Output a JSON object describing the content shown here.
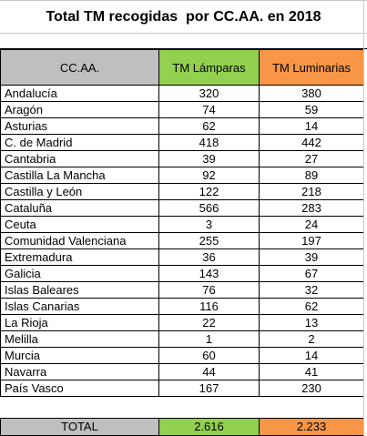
{
  "title": "Total TM recogidas  por CC.AA. en 2018",
  "headers": {
    "region": "CC.AA.",
    "lamparas": "TM Lámparas",
    "luminarias": "TM Luminarias"
  },
  "colors": {
    "header_gray": "#bfbfbf",
    "lamparas_green": "#92d050",
    "luminarias_orange": "#f79646"
  },
  "rows": [
    {
      "region": "Andalucía",
      "lamparas": "320",
      "luminarias": "380"
    },
    {
      "region": "Aragón",
      "lamparas": "74",
      "luminarias": "59"
    },
    {
      "region": "Asturias",
      "lamparas": "62",
      "luminarias": "14"
    },
    {
      "region": "C. de Madrid",
      "lamparas": "418",
      "luminarias": "442"
    },
    {
      "region": "Cantabria",
      "lamparas": "39",
      "luminarias": "27"
    },
    {
      "region": "Castilla La Mancha",
      "lamparas": "92",
      "luminarias": "89"
    },
    {
      "region": "Castilla y León",
      "lamparas": "122",
      "luminarias": "218"
    },
    {
      "region": "Cataluña",
      "lamparas": "566",
      "luminarias": "283"
    },
    {
      "region": "Ceuta",
      "lamparas": "3",
      "luminarias": "24"
    },
    {
      "region": "Comunidad Valenciana",
      "lamparas": "255",
      "luminarias": "197"
    },
    {
      "region": "Extremadura",
      "lamparas": "36",
      "luminarias": "39"
    },
    {
      "region": "Galicia",
      "lamparas": "143",
      "luminarias": "67"
    },
    {
      "region": "Islas Baleares",
      "lamparas": "76",
      "luminarias": "32"
    },
    {
      "region": "Islas Canarias",
      "lamparas": "116",
      "luminarias": "62"
    },
    {
      "region": "La Rioja",
      "lamparas": "22",
      "luminarias": "13"
    },
    {
      "region": "Melilla",
      "lamparas": "1",
      "luminarias": "2"
    },
    {
      "region": "Murcia",
      "lamparas": "60",
      "luminarias": "14"
    },
    {
      "region": "Navarra",
      "lamparas": "44",
      "luminarias": "41"
    },
    {
      "region": "País Vasco",
      "lamparas": "167",
      "luminarias": "230"
    }
  ],
  "total": {
    "label": "TOTAL",
    "lamparas": "2.616",
    "luminarias": "2.233"
  }
}
